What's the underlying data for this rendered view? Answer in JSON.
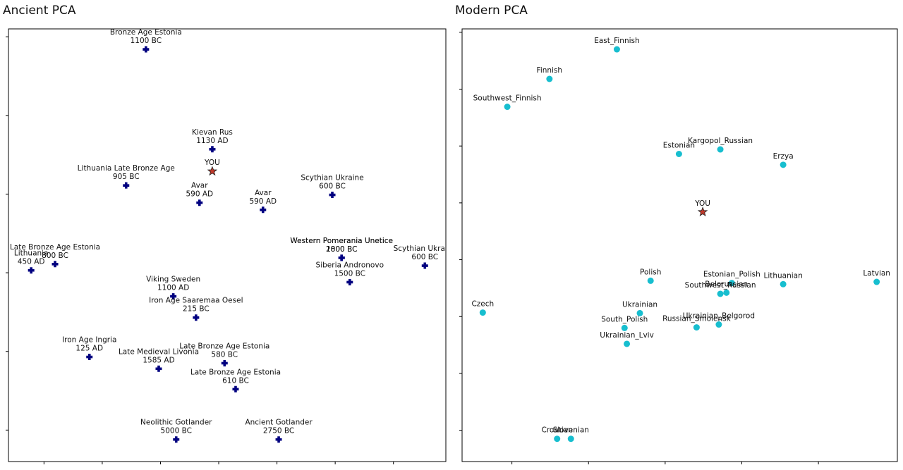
{
  "chart_data": [
    {
      "type": "scatter",
      "title": "Ancient PCA",
      "xlim": [
        -3.61,
        3.9
      ],
      "ylim": [
        -0.4,
        5.1
      ],
      "xticks": [
        -3,
        -2,
        -1,
        0,
        1,
        2,
        3
      ],
      "yticks": [
        0,
        1,
        2,
        3,
        4,
        5
      ],
      "series": [
        {
          "color": "#000080",
          "marker": "plus",
          "x": [
            -1.25,
            -0.11,
            -1.59,
            -0.33,
            0.76,
            1.95,
            2.11,
            2.11,
            3.54,
            2.25,
            -2.81,
            -3.22,
            -0.78,
            -0.39,
            -2.22,
            -1.03,
            0.1,
            0.29,
            -0.73,
            1.03
          ],
          "y": [
            4.84,
            3.57,
            3.11,
            2.89,
            2.8,
            2.99,
            2.19,
            2.19,
            2.09,
            1.88,
            2.11,
            2.03,
            1.7,
            1.43,
            0.93,
            0.78,
            0.85,
            0.52,
            -0.12,
            -0.12
          ],
          "names": [
            "Bronze Age Estonia",
            "Kievan Rus",
            "Lithuania Late Bronze Age",
            "Avar",
            "Avar",
            "Scythian Ukraine",
            "Western Pomerania Unetice",
            "Western Pomerania Unetice",
            "Scythian Ukraine",
            "Siberia Andronovo",
            "Late Bronze Age Estonia",
            "Lithuania",
            "Viking Sweden",
            "Iron Age Saaremaa Oesel",
            "Iron Age Ingria",
            "Late Medieval Livonia",
            "Late Bronze Age Estonia",
            "Late Bronze Age Estonia",
            "Neolithic Gotlander",
            "Ancient Gotlander"
          ],
          "dates": [
            "1100 BC",
            "1130 AD",
            "905 BC",
            "590 AD",
            "590 AD",
            "600 BC",
            "2000 BC",
            "1800 BC",
            "600 BC",
            "1500 BC",
            "800 BC",
            "450 AD",
            "1100 AD",
            "215 BC",
            "125 AD",
            "1585 AD",
            "580 BC",
            "610 BC",
            "5000 BC",
            "2750 BC"
          ]
        },
        {
          "color": "#c0392b",
          "marker": "star",
          "x": [
            -0.11
          ],
          "y": [
            3.29
          ],
          "names": [
            "YOU"
          ]
        }
      ]
    },
    {
      "type": "scatter",
      "title": "Modern PCA",
      "xlim": [
        -0.65,
        5.03
      ],
      "ylim": [
        -0.55,
        7.06
      ],
      "xticks": [
        0,
        1,
        2,
        3,
        4
      ],
      "yticks": [
        0,
        1,
        2,
        3,
        4,
        5,
        6,
        7
      ],
      "series": [
        {
          "color": "#17becf",
          "marker": "circle",
          "x": [
            1.37,
            0.49,
            -0.06,
            2.18,
            2.72,
            3.54,
            1.81,
            2.87,
            2.8,
            2.72,
            3.54,
            4.76,
            -0.38,
            1.67,
            1.47,
            2.41,
            2.7,
            1.5,
            0.59,
            0.77
          ],
          "y": [
            6.7,
            6.18,
            5.69,
            4.86,
            4.94,
            4.67,
            2.63,
            2.59,
            2.42,
            2.4,
            2.57,
            2.61,
            2.07,
            2.06,
            1.8,
            1.81,
            1.86,
            1.52,
            -0.15,
            -0.15
          ],
          "names": [
            "East_Finnish",
            "Finnish",
            "Southwest_Finnish",
            "Estonian",
            "Kargopol_Russian",
            "Erzya",
            "Polish",
            "Estonian_Polish",
            "Belorussian",
            "Southwest_Russian",
            "Lithuanian",
            "Latvian",
            "Czech",
            "Ukrainian",
            "South_Polish",
            "Russian_Smolensk",
            "Ukrainian_Belgorod",
            "Ukrainian_Lviv",
            "Croatian",
            "Slovenian"
          ]
        },
        {
          "color": "#c0392b",
          "marker": "star",
          "x": [
            2.49
          ],
          "y": [
            3.84
          ],
          "names": [
            "YOU"
          ]
        }
      ]
    }
  ]
}
